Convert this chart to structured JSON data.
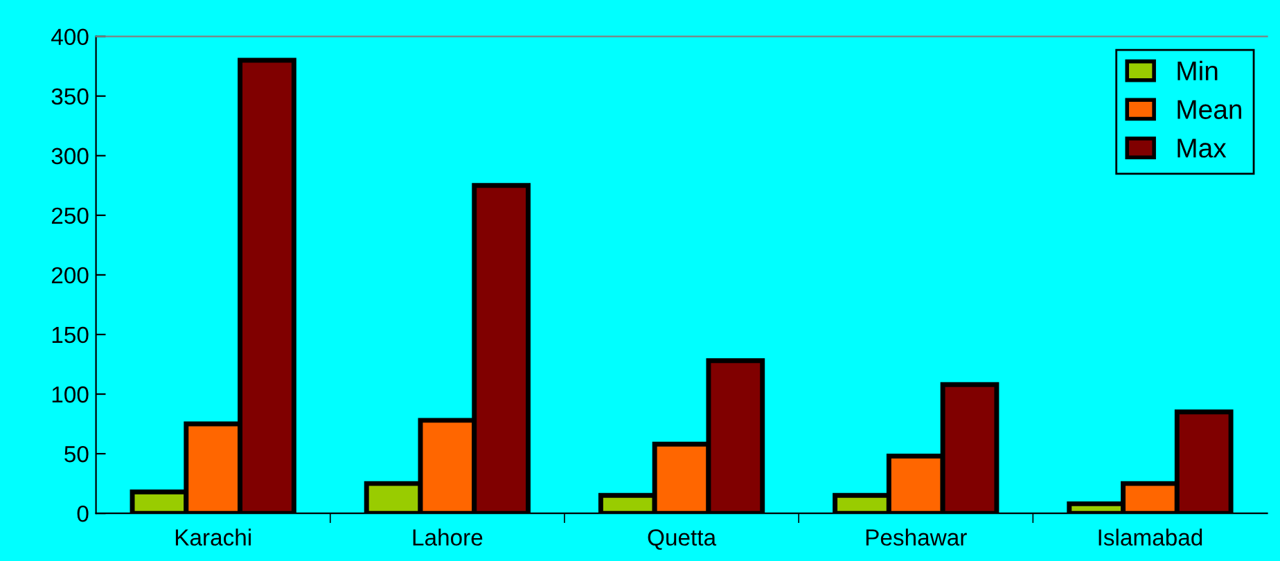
{
  "chart_data": {
    "type": "bar",
    "categories": [
      "Karachi",
      "Lahore",
      "Quetta",
      "Peshawar",
      "Islamabad"
    ],
    "series": [
      {
        "name": "Min",
        "color": "#99cc00",
        "values": [
          18,
          25,
          15,
          15,
          8
        ]
      },
      {
        "name": "Mean",
        "color": "#ff6600",
        "values": [
          75,
          78,
          58,
          48,
          25
        ]
      },
      {
        "name": "Max",
        "color": "#800000",
        "values": [
          380,
          275,
          128,
          108,
          85
        ]
      }
    ],
    "ylim": [
      0,
      400
    ],
    "yticks": [
      0,
      50,
      100,
      150,
      200,
      250,
      300,
      350,
      400
    ],
    "grid": false,
    "legend": "top right"
  }
}
